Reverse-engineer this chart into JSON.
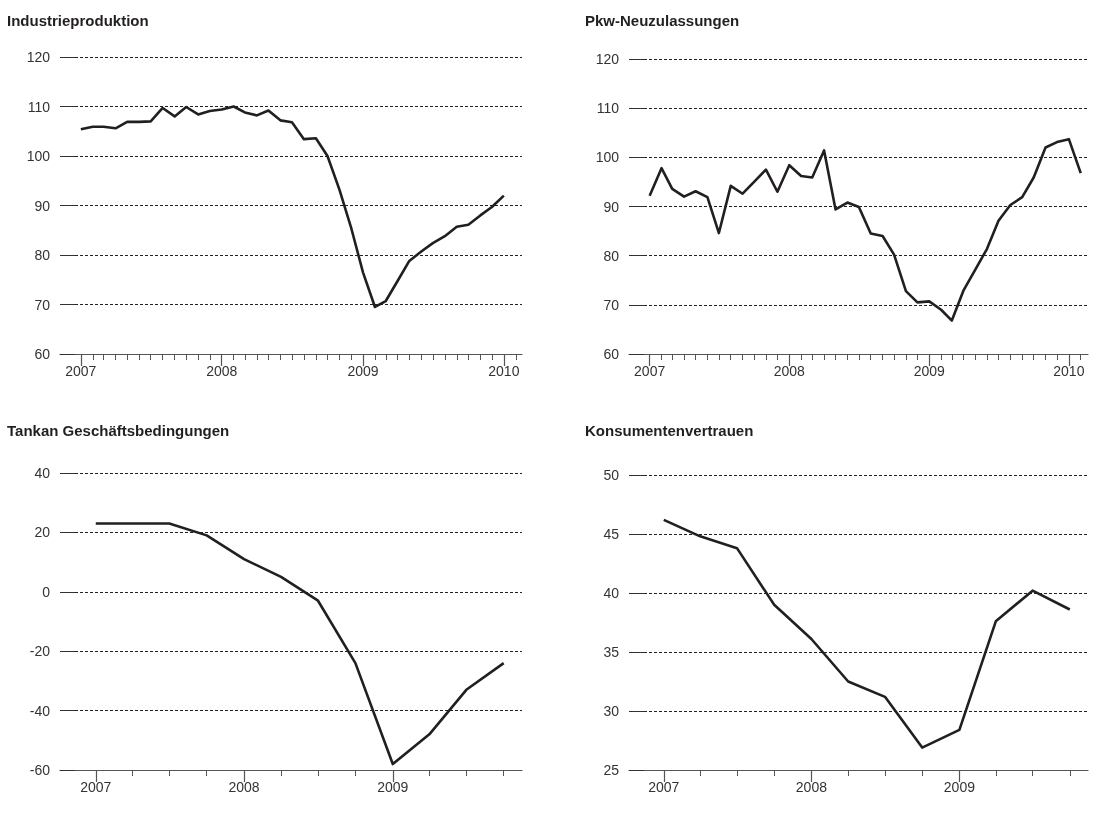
{
  "chart_data": [
    {
      "type": "line",
      "title": "Industrieproduktion",
      "color": "#231f20",
      "marker": "none",
      "grid": "y",
      "x": [
        "2007-01",
        "2007-02",
        "2007-03",
        "2007-04",
        "2007-05",
        "2007-06",
        "2007-07",
        "2007-08",
        "2007-09",
        "2007-10",
        "2007-11",
        "2007-12",
        "2008-01",
        "2008-02",
        "2008-03",
        "2008-04",
        "2008-05",
        "2008-06",
        "2008-07",
        "2008-08",
        "2008-09",
        "2008-10",
        "2008-11",
        "2008-12",
        "2009-01",
        "2009-02",
        "2009-03",
        "2009-04",
        "2009-05",
        "2009-06",
        "2009-07",
        "2009-08",
        "2009-09",
        "2009-10",
        "2009-11",
        "2009-12",
        "2010-01"
      ],
      "values": [
        105.4,
        105.9,
        105.9,
        105.6,
        106.9,
        106.9,
        107.0,
        109.7,
        108.0,
        109.9,
        108.4,
        109.1,
        109.4,
        110.0,
        108.8,
        108.2,
        109.2,
        107.2,
        106.8,
        103.4,
        103.6,
        100.0,
        93.2,
        85.6,
        76.5,
        69.5,
        70.7,
        74.8,
        78.8,
        80.7,
        82.4,
        83.8,
        85.7,
        86.1,
        88.0,
        89.7,
        92.0
      ],
      "xlim": [
        "2006-11-08",
        "2010-02-17"
      ],
      "ylim": [
        60,
        120
      ],
      "yticks": [
        60,
        70,
        80,
        90,
        100,
        110,
        120
      ],
      "xticks": [
        {
          "value": "2007-01",
          "label": "2007"
        },
        {
          "value": "2007-02",
          "label": null
        },
        {
          "value": "2007-03",
          "label": null
        },
        {
          "value": "2007-04",
          "label": null
        },
        {
          "value": "2007-05",
          "label": null
        },
        {
          "value": "2007-06",
          "label": null
        },
        {
          "value": "2007-07",
          "label": null
        },
        {
          "value": "2007-08",
          "label": null
        },
        {
          "value": "2007-09",
          "label": null
        },
        {
          "value": "2007-10",
          "label": null
        },
        {
          "value": "2007-11",
          "label": null
        },
        {
          "value": "2007-12",
          "label": null
        },
        {
          "value": "2008-01",
          "label": "2008"
        },
        {
          "value": "2008-02",
          "label": null
        },
        {
          "value": "2008-03",
          "label": null
        },
        {
          "value": "2008-04",
          "label": null
        },
        {
          "value": "2008-05",
          "label": null
        },
        {
          "value": "2008-06",
          "label": null
        },
        {
          "value": "2008-07",
          "label": null
        },
        {
          "value": "2008-08",
          "label": null
        },
        {
          "value": "2008-09",
          "label": null
        },
        {
          "value": "2008-10",
          "label": null
        },
        {
          "value": "2008-11",
          "label": null
        },
        {
          "value": "2008-12",
          "label": null
        },
        {
          "value": "2009-01",
          "label": "2009"
        },
        {
          "value": "2009-02",
          "label": null
        },
        {
          "value": "2009-03",
          "label": null
        },
        {
          "value": "2009-04",
          "label": null
        },
        {
          "value": "2009-05",
          "label": null
        },
        {
          "value": "2009-06",
          "label": null
        },
        {
          "value": "2009-07",
          "label": null
        },
        {
          "value": "2009-08",
          "label": null
        },
        {
          "value": "2009-09",
          "label": null
        },
        {
          "value": "2009-10",
          "label": null
        },
        {
          "value": "2009-11",
          "label": null
        },
        {
          "value": "2009-12",
          "label": null
        },
        {
          "value": "2010-01",
          "label": "2010"
        },
        {
          "value": "2010-02",
          "label": null
        }
      ]
    },
    {
      "type": "line",
      "title": "Pkw-Neuzulassungen",
      "color": "#231f20",
      "marker": "none",
      "grid": "y",
      "x": [
        "2007-01",
        "2007-02",
        "2007-03",
        "2007-04",
        "2007-05",
        "2007-06",
        "2007-07",
        "2007-08",
        "2007-09",
        "2007-10",
        "2007-11",
        "2007-12",
        "2008-01",
        "2008-02",
        "2008-03",
        "2008-04",
        "2008-05",
        "2008-06",
        "2008-07",
        "2008-08",
        "2008-09",
        "2008-10",
        "2008-11",
        "2008-12",
        "2009-01",
        "2009-02",
        "2009-03",
        "2009-04",
        "2009-05",
        "2009-06",
        "2009-07",
        "2009-08",
        "2009-09",
        "2009-10",
        "2009-11",
        "2009-12",
        "2010-01",
        "2010-02"
      ],
      "values": [
        92.2,
        97.8,
        93.6,
        92.0,
        93.1,
        91.9,
        84.6,
        94.2,
        92.6,
        95.0,
        97.5,
        93.0,
        98.4,
        96.2,
        95.9,
        101.4,
        89.4,
        90.8,
        89.9,
        84.5,
        84.0,
        80.2,
        72.8,
        70.5,
        70.7,
        69.0,
        66.8,
        73.0,
        77.1,
        81.4,
        87.1,
        90.3,
        91.9,
        95.9,
        102.0,
        103.1,
        103.7,
        96.8
      ],
      "xlim": [
        "2006-11-08",
        "2010-02-20"
      ],
      "ylim": [
        60,
        120
      ],
      "yticks": [
        60,
        70,
        80,
        90,
        100,
        110,
        120
      ],
      "xticks": [
        {
          "value": "2007-01",
          "label": "2007"
        },
        {
          "value": "2007-02",
          "label": null
        },
        {
          "value": "2007-03",
          "label": null
        },
        {
          "value": "2007-04",
          "label": null
        },
        {
          "value": "2007-05",
          "label": null
        },
        {
          "value": "2007-06",
          "label": null
        },
        {
          "value": "2007-07",
          "label": null
        },
        {
          "value": "2007-08",
          "label": null
        },
        {
          "value": "2007-09",
          "label": null
        },
        {
          "value": "2007-10",
          "label": null
        },
        {
          "value": "2007-11",
          "label": null
        },
        {
          "value": "2007-12",
          "label": null
        },
        {
          "value": "2008-01",
          "label": "2008"
        },
        {
          "value": "2008-02",
          "label": null
        },
        {
          "value": "2008-03",
          "label": null
        },
        {
          "value": "2008-04",
          "label": null
        },
        {
          "value": "2008-05",
          "label": null
        },
        {
          "value": "2008-06",
          "label": null
        },
        {
          "value": "2008-07",
          "label": null
        },
        {
          "value": "2008-08",
          "label": null
        },
        {
          "value": "2008-09",
          "label": null
        },
        {
          "value": "2008-10",
          "label": null
        },
        {
          "value": "2008-11",
          "label": null
        },
        {
          "value": "2008-12",
          "label": null
        },
        {
          "value": "2009-01",
          "label": "2009"
        },
        {
          "value": "2009-02",
          "label": null
        },
        {
          "value": "2009-03",
          "label": null
        },
        {
          "value": "2009-04",
          "label": null
        },
        {
          "value": "2009-05",
          "label": null
        },
        {
          "value": "2009-06",
          "label": null
        },
        {
          "value": "2009-07",
          "label": null
        },
        {
          "value": "2009-08",
          "label": null
        },
        {
          "value": "2009-09",
          "label": null
        },
        {
          "value": "2009-10",
          "label": null
        },
        {
          "value": "2009-11",
          "label": null
        },
        {
          "value": "2009-12",
          "label": null
        },
        {
          "value": "2010-01",
          "label": "2010"
        },
        {
          "value": "2010-02",
          "label": null
        }
      ]
    },
    {
      "type": "line",
      "title": "Tankan Geschäftsbedingungen",
      "color": "#231f20",
      "marker": "none",
      "grid": "y",
      "x": [
        "2007-01",
        "2007-04",
        "2007-07",
        "2007-10",
        "2008-01",
        "2008-04",
        "2008-07",
        "2008-10",
        "2009-01",
        "2009-04",
        "2009-07",
        "2009-10"
      ],
      "values": [
        23,
        23,
        23,
        19,
        11,
        5,
        -3,
        -24,
        -58,
        -48,
        -33,
        -24
      ],
      "xlim": [
        "2006-10-05",
        "2009-11-15"
      ],
      "ylim": [
        -60,
        40
      ],
      "yticks": [
        -60,
        -40,
        -20,
        0,
        20,
        40
      ],
      "xticks": [
        {
          "value": "2007-01",
          "label": "2007"
        },
        {
          "value": "2007-04",
          "label": null
        },
        {
          "value": "2007-07",
          "label": null
        },
        {
          "value": "2007-10",
          "label": null
        },
        {
          "value": "2008-01",
          "label": "2008"
        },
        {
          "value": "2008-04",
          "label": null
        },
        {
          "value": "2008-07",
          "label": null
        },
        {
          "value": "2008-10",
          "label": null
        },
        {
          "value": "2009-01",
          "label": "2009"
        },
        {
          "value": "2009-04",
          "label": null
        },
        {
          "value": "2009-07",
          "label": null
        },
        {
          "value": "2009-10",
          "label": null
        }
      ]
    },
    {
      "type": "line",
      "title": "Konsumentenvertrauen",
      "color": "#231f20",
      "marker": "none",
      "grid": "y",
      "x": [
        "2007-01",
        "2007-04",
        "2007-07",
        "2007-10",
        "2008-01",
        "2008-04",
        "2008-07",
        "2008-10",
        "2009-01",
        "2009-04",
        "2009-07",
        "2009-10"
      ],
      "values": [
        46.2,
        44.8,
        43.8,
        39.0,
        36.1,
        32.5,
        31.2,
        26.9,
        28.4,
        37.6,
        40.2,
        38.6
      ],
      "xlim": [
        "2006-10-07",
        "2009-11-15"
      ],
      "ylim": [
        25,
        50
      ],
      "yticks": [
        25,
        30,
        35,
        40,
        45,
        50
      ],
      "xticks": [
        {
          "value": "2007-01",
          "label": "2007"
        },
        {
          "value": "2007-04",
          "label": null
        },
        {
          "value": "2007-07",
          "label": null
        },
        {
          "value": "2007-10",
          "label": null
        },
        {
          "value": "2008-01",
          "label": "2008"
        },
        {
          "value": "2008-04",
          "label": null
        },
        {
          "value": "2008-07",
          "label": null
        },
        {
          "value": "2008-10",
          "label": null
        },
        {
          "value": "2009-01",
          "label": "2009"
        },
        {
          "value": "2009-04",
          "label": null
        },
        {
          "value": "2009-07",
          "label": null
        },
        {
          "value": "2009-10",
          "label": null
        }
      ]
    }
  ]
}
